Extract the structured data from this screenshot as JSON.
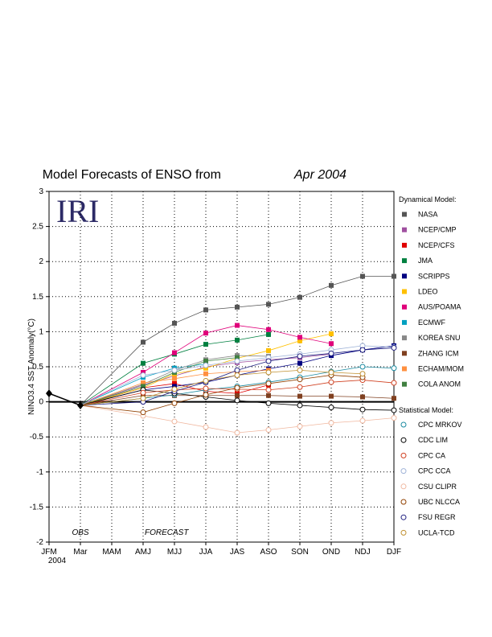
{
  "chart_data": {
    "type": "line",
    "title": "Model Forecasts of ENSO from",
    "title_date": "Apr 2004",
    "logo": "IRI",
    "ylabel": "NINO3.4 SST Anomaly(°C)",
    "xlabel": "",
    "ylim": [
      -2,
      3
    ],
    "yticks": [
      -2,
      -1.5,
      -1,
      -0.5,
      0,
      0.5,
      1,
      1.5,
      2,
      2.5,
      3
    ],
    "categories": [
      "JFM",
      "Mar",
      "MAM",
      "AMJ",
      "MJJ",
      "JJA",
      "JAS",
      "ASO",
      "SON",
      "OND",
      "NDJ",
      "DJF"
    ],
    "year_label": "2004",
    "annotations": {
      "obs": "OBS",
      "forecast": "FORECAST"
    },
    "grid": true,
    "legend_position": "right",
    "observed": {
      "values": [
        0.12,
        -0.05,
        null,
        null,
        null,
        null,
        null,
        null,
        null,
        null,
        null,
        null
      ],
      "color": "#000000"
    },
    "legend_headers": {
      "dynamical": "Dynamical Model:",
      "statistical": "Statistical Model:"
    },
    "series": [
      {
        "name": "NASA",
        "group": "dynamical",
        "color": "#555555",
        "values": [
          null,
          -0.05,
          null,
          0.85,
          1.12,
          1.31,
          1.35,
          1.39,
          1.49,
          1.66,
          1.79,
          1.79
        ]
      },
      {
        "name": "NCEP/CMP",
        "group": "dynamical",
        "color": "#a050a0",
        "values": [
          null,
          -0.05,
          null,
          0.24,
          0.37,
          0.5,
          0.56,
          0.6,
          0.63,
          0.68,
          null,
          null
        ]
      },
      {
        "name": "NCEP/CFS",
        "group": "dynamical",
        "color": "#e00000",
        "values": [
          null,
          -0.05,
          null,
          0.2,
          0.26,
          0.15,
          0.12,
          0.24,
          null,
          null,
          null,
          null
        ]
      },
      {
        "name": "JMA",
        "group": "dynamical",
        "color": "#008040",
        "values": [
          null,
          -0.05,
          null,
          0.55,
          0.68,
          0.82,
          0.88,
          0.96,
          null,
          null,
          null,
          null
        ]
      },
      {
        "name": "SCRIPPS",
        "group": "dynamical",
        "color": "#000080",
        "values": [
          null,
          -0.05,
          null,
          0.17,
          0.22,
          0.28,
          0.38,
          0.47,
          0.55,
          0.66,
          0.74,
          0.8
        ]
      },
      {
        "name": "LDEO",
        "group": "dynamical",
        "color": "#ffc000",
        "values": [
          null,
          -0.05,
          null,
          0.2,
          0.4,
          0.48,
          0.62,
          0.73,
          0.87,
          0.97,
          null,
          null
        ]
      },
      {
        "name": "AUS/POAMA",
        "group": "dynamical",
        "color": "#e0007a",
        "values": [
          null,
          -0.05,
          null,
          0.42,
          0.7,
          0.98,
          1.09,
          1.03,
          0.92,
          0.83,
          null,
          null
        ]
      },
      {
        "name": "ECMWF",
        "group": "dynamical",
        "color": "#00a0c0",
        "values": [
          null,
          -0.05,
          null,
          0.35,
          0.48,
          0.54,
          null,
          null,
          null,
          null,
          null,
          null
        ]
      },
      {
        "name": "KOREA SNU",
        "group": "dynamical",
        "color": "#888888",
        "values": [
          null,
          -0.05,
          null,
          0.25,
          0.45,
          0.6,
          0.66,
          0.65,
          null,
          null,
          null,
          null
        ]
      },
      {
        "name": "ZHANG ICM",
        "group": "dynamical",
        "color": "#804020",
        "values": [
          null,
          -0.05,
          null,
          0.09,
          0.09,
          0.09,
          0.09,
          0.09,
          0.08,
          0.08,
          0.07,
          0.05
        ]
      },
      {
        "name": "ECHAM/MOM",
        "group": "dynamical",
        "color": "#ff9040",
        "values": [
          null,
          -0.05,
          null,
          0.27,
          0.33,
          0.4,
          0.43,
          0.45,
          null,
          null,
          null,
          null
        ]
      },
      {
        "name": "COLA ANOM",
        "group": "dynamical",
        "color": "#408040",
        "values": [
          null,
          -0.05,
          null,
          0.22,
          0.42,
          0.58,
          0.63,
          null,
          null,
          null,
          null,
          null
        ]
      },
      {
        "name": "CPC MRKOV",
        "group": "statistical",
        "color": "#1a8aa0",
        "values": [
          null,
          -0.05,
          null,
          0.05,
          0.1,
          0.17,
          0.22,
          0.28,
          0.35,
          0.43,
          0.5,
          0.48
        ]
      },
      {
        "name": "CDC LIM",
        "group": "statistical",
        "color": "#000000",
        "values": [
          null,
          -0.05,
          null,
          0.17,
          0.12,
          0.07,
          0.02,
          -0.02,
          -0.05,
          -0.08,
          -0.11,
          -0.12
        ]
      },
      {
        "name": "CPC CA",
        "group": "statistical",
        "color": "#d04020",
        "values": [
          null,
          -0.05,
          null,
          0.13,
          0.17,
          0.19,
          0.18,
          0.17,
          0.21,
          0.28,
          0.31,
          0.27
        ]
      },
      {
        "name": "CPC CCA",
        "group": "statistical",
        "color": "#a0b4d8",
        "values": [
          null,
          -0.05,
          null,
          0.38,
          0.45,
          0.52,
          0.58,
          0.63,
          0.68,
          0.74,
          0.8,
          0.78
        ]
      },
      {
        "name": "CSU CLIPR",
        "group": "statistical",
        "color": "#f0b8a0",
        "values": [
          null,
          -0.05,
          null,
          -0.2,
          -0.28,
          -0.36,
          -0.44,
          -0.4,
          -0.35,
          -0.3,
          -0.27,
          -0.23
        ]
      },
      {
        "name": "UBC NLCCA",
        "group": "statistical",
        "color": "#904000",
        "values": [
          null,
          -0.05,
          null,
          -0.15,
          -0.02,
          0.1,
          0.2,
          0.26,
          0.32,
          0.38,
          0.35,
          null
        ]
      },
      {
        "name": "FSU REGR",
        "group": "statistical",
        "color": "#202080",
        "values": [
          null,
          -0.05,
          null,
          0.0,
          0.15,
          0.28,
          0.45,
          0.58,
          0.65,
          0.69,
          0.74,
          0.77
        ]
      },
      {
        "name": "UCLA-TCD",
        "group": "statistical",
        "color": "#c09030",
        "values": [
          null,
          -0.05,
          null,
          0.05,
          0.18,
          0.3,
          0.38,
          0.42,
          0.45,
          0.42,
          0.4,
          null
        ]
      }
    ]
  }
}
